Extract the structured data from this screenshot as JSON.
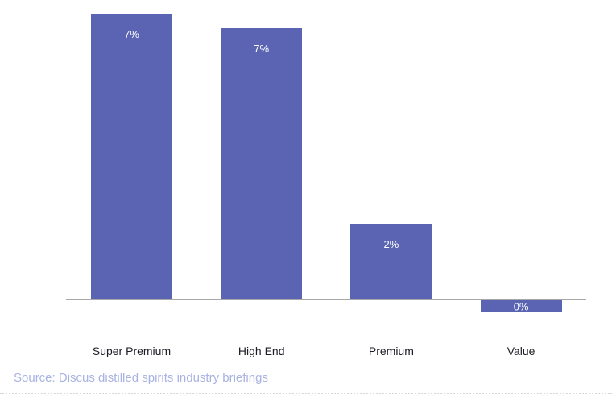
{
  "chart_data": {
    "type": "bar",
    "title": "",
    "categories": [
      "Super Premium",
      "High End",
      "Premium",
      "Value"
    ],
    "values": [
      7,
      7,
      2,
      0
    ],
    "values_precise": [
      7.0,
      6.65,
      1.85,
      -0.3
    ],
    "value_labels": [
      "7%",
      "7%",
      "2%",
      "0%"
    ],
    "xlabel": "",
    "ylabel": "",
    "ylim": [
      -0.5,
      7.2
    ],
    "grid": false,
    "legend": false,
    "bar_color": "#5a64b2",
    "value_label_color": "#ffffff",
    "category_label_color": "#1c1c24",
    "axis_line_color": "#a8a8a8"
  },
  "source_note": {
    "text": "Source: Discus distilled spirits industry briefings",
    "color": "#a9b3e2"
  },
  "page": {
    "background": "#ffffff",
    "bottom_divider_color": "#d8d8d8"
  }
}
